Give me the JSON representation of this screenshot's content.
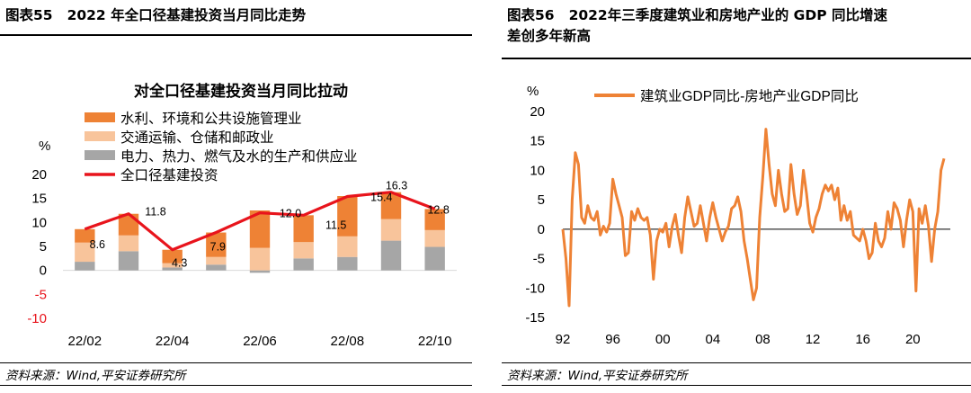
{
  "left": {
    "fig_label": "图表55",
    "fig_title": "2022 年全口径基建投资当月同比走势",
    "source": "资料来源：Wind,平安证券研究所",
    "chart_data": {
      "type": "bar",
      "stacked": true,
      "title": "对全口径基建投资当月同比拉动",
      "ylabel": "%",
      "ylim": [
        -10,
        20
      ],
      "yticks": [
        -10,
        -5,
        0,
        5,
        10,
        15,
        20
      ],
      "categories": [
        "22/02",
        "22/03",
        "22/04",
        "22/05",
        "22/06",
        "22/07",
        "22/08",
        "22/09",
        "22/10"
      ],
      "xtick_labels": [
        "22/02",
        "22/04",
        "22/06",
        "22/08",
        "22/10"
      ],
      "series": [
        {
          "name": "电力、热力、燃气及水的生产和供应业",
          "type": "bar",
          "color": "#a6a6a6",
          "values": [
            1.8,
            4.0,
            0.6,
            1.2,
            -0.5,
            2.5,
            2.8,
            6.2,
            4.9
          ]
        },
        {
          "name": "交通运输、仓储和邮政业",
          "type": "bar",
          "color": "#f8c49b",
          "values": [
            4.0,
            3.3,
            0.9,
            1.6,
            4.7,
            3.4,
            4.3,
            4.5,
            3.5
          ]
        },
        {
          "name": "水利、环境和公共设施管理业",
          "type": "bar",
          "color": "#ee8235",
          "values": [
            2.8,
            4.5,
            2.8,
            5.1,
            7.8,
            5.6,
            8.4,
            5.6,
            4.4
          ]
        },
        {
          "name": "全口径基建投资",
          "type": "line",
          "color": "#e8141c",
          "values": [
            8.6,
            11.8,
            4.3,
            7.9,
            12.0,
            11.5,
            15.4,
            16.3,
            12.8
          ]
        }
      ],
      "data_labels": [
        "8.6",
        "11.8",
        "4.3",
        "7.9",
        "12.0",
        "11.5",
        "15.4",
        "16.3",
        "12.8"
      ]
    }
  },
  "right": {
    "fig_label": "图表56",
    "fig_title": "2022年三季度建筑业和房地产业的 GDP 同比增速\n差创多年新高",
    "source": "资料来源：Wind,平安证券研究所",
    "chart_data": {
      "type": "line",
      "ylabel": "%",
      "ylim": [
        -15,
        20
      ],
      "yticks": [
        -15,
        -10,
        -5,
        0,
        5,
        10,
        15,
        20
      ],
      "xlim": [
        1992.0,
        2023.0
      ],
      "xtick_values": [
        1992,
        1996,
        2000,
        2004,
        2008,
        2012,
        2016,
        2020
      ],
      "xtick_labels": [
        "92",
        "96",
        "00",
        "04",
        "08",
        "12",
        "16",
        "20"
      ],
      "series": [
        {
          "name": "建筑业GDP同比-房地产业GDP同比",
          "color": "#ee8235",
          "x": [
            1992.0,
            1992.25,
            1992.5,
            1992.75,
            1993.0,
            1993.25,
            1993.5,
            1993.75,
            1994.0,
            1994.25,
            1994.5,
            1994.75,
            1995.0,
            1995.25,
            1995.5,
            1995.75,
            1996.0,
            1996.25,
            1996.5,
            1996.75,
            1997.0,
            1997.25,
            1997.5,
            1997.75,
            1998.0,
            1998.25,
            1998.5,
            1998.75,
            1999.0,
            1999.25,
            1999.5,
            1999.75,
            2000.0,
            2000.25,
            2000.5,
            2000.75,
            2001.0,
            2001.25,
            2001.5,
            2001.75,
            2002.0,
            2002.25,
            2002.5,
            2002.75,
            2003.0,
            2003.25,
            2003.5,
            2003.75,
            2004.0,
            2004.25,
            2004.5,
            2004.75,
            2005.0,
            2005.25,
            2005.5,
            2005.75,
            2006.0,
            2006.25,
            2006.5,
            2006.75,
            2007.0,
            2007.25,
            2007.5,
            2007.75,
            2008.0,
            2008.25,
            2008.5,
            2008.75,
            2009.0,
            2009.25,
            2009.5,
            2009.75,
            2010.0,
            2010.25,
            2010.5,
            2010.75,
            2011.0,
            2011.25,
            2011.5,
            2011.75,
            2012.0,
            2012.25,
            2012.5,
            2012.75,
            2013.0,
            2013.25,
            2013.5,
            2013.75,
            2014.0,
            2014.25,
            2014.5,
            2014.75,
            2015.0,
            2015.25,
            2015.5,
            2015.75,
            2016.0,
            2016.25,
            2016.5,
            2016.75,
            2017.0,
            2017.25,
            2017.5,
            2017.75,
            2018.0,
            2018.25,
            2018.5,
            2018.75,
            2019.0,
            2019.25,
            2019.5,
            2019.75,
            2020.0,
            2020.25,
            2020.5,
            2020.75,
            2021.0,
            2021.25,
            2021.5,
            2021.75,
            2022.0,
            2022.25,
            2022.5
          ],
          "y": [
            0,
            -5,
            -13,
            5,
            13,
            11,
            2,
            1,
            4,
            2,
            1.5,
            3,
            -1,
            0.5,
            -0.5,
            1,
            8.5,
            6,
            4,
            2,
            -4.5,
            -4,
            3,
            1.5,
            3.5,
            2,
            1.5,
            2,
            -1,
            -8.5,
            -2,
            0,
            -0.5,
            1,
            -3,
            0.5,
            2.5,
            -1,
            -4,
            2,
            5.5,
            3,
            0.5,
            1,
            4,
            1,
            -2,
            2,
            4.5,
            2,
            0,
            -2,
            -0.5,
            0.5,
            3.5,
            4,
            5.5,
            3,
            -2,
            -5,
            -8.5,
            -12,
            -10,
            2,
            9,
            17,
            11,
            6,
            4,
            10,
            6,
            3,
            3.5,
            11,
            6,
            2.5,
            4,
            10,
            6,
            1,
            -0.5,
            2,
            3.5,
            6,
            7.5,
            6.5,
            7.5,
            5,
            7,
            1.5,
            4,
            1.5,
            3,
            -1,
            -1.5,
            -2,
            0,
            -2,
            -5,
            -4,
            1,
            -2,
            -3,
            -1.5,
            3,
            0,
            4.5,
            3.5,
            1.5,
            -3,
            1.5,
            5,
            3,
            -10.5,
            3.5,
            1,
            4,
            0.5,
            -5.5,
            0,
            3,
            10,
            12
          ]
        }
      ]
    }
  }
}
